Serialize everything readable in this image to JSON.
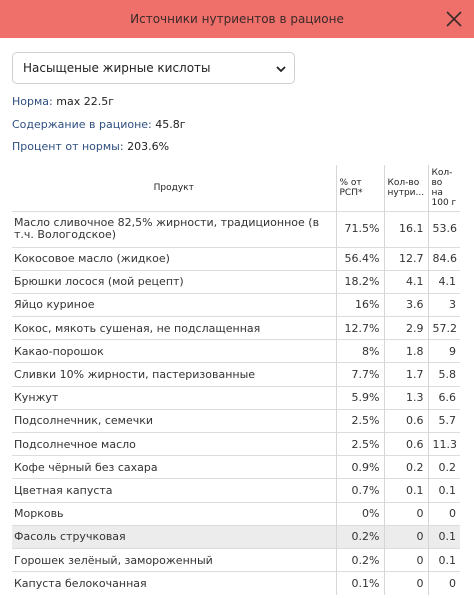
{
  "header": {
    "title": "Источники нутриентов в рационе"
  },
  "selector": {
    "value": "Насыщеные жирные кислоты"
  },
  "summary": {
    "norm_label": "Норма:",
    "norm_value": "max 22.5г",
    "content_label": "Содержание в рационе:",
    "content_value": "45.8г",
    "percent_label": "Процент от нормы:",
    "percent_value": "203.6%"
  },
  "table": {
    "headers": {
      "product": "Продукт",
      "pct_line1": "% от",
      "pct_line2": "РСП*",
      "qty_line1": "Кол-во",
      "qty_line2": "нутри...",
      "per100_line1": "Кол-",
      "per100_line2": "во",
      "per100_line3": "на",
      "per100_line4": "100 г"
    },
    "rows": [
      {
        "product": "Масло сливочное 82,5% жирности, традиционное (в т.ч. Вологодское)",
        "pct": "71.5%",
        "qty": "16.1",
        "per100": "53.6"
      },
      {
        "product": "Кокосовое масло (жидкое)",
        "pct": "56.4%",
        "qty": "12.7",
        "per100": "84.6"
      },
      {
        "product": "Брюшки лосося (мой рецепт)",
        "pct": "18.2%",
        "qty": "4.1",
        "per100": "4.1"
      },
      {
        "product": "Яйцо куриное",
        "pct": "16%",
        "qty": "3.6",
        "per100": "3"
      },
      {
        "product": "Кокос, мякоть сушеная, не подслащенная",
        "pct": "12.7%",
        "qty": "2.9",
        "per100": "57.2"
      },
      {
        "product": "Какао-порошок",
        "pct": "8%",
        "qty": "1.8",
        "per100": "9"
      },
      {
        "product": "Сливки 10% жирности, пастеризованные",
        "pct": "7.7%",
        "qty": "1.7",
        "per100": "5.8"
      },
      {
        "product": "Кунжут",
        "pct": "5.9%",
        "qty": "1.3",
        "per100": "6.6"
      },
      {
        "product": "Подсолнечник, семечки",
        "pct": "2.5%",
        "qty": "0.6",
        "per100": "5.7"
      },
      {
        "product": "Подсолнечное масло",
        "pct": "2.5%",
        "qty": "0.6",
        "per100": "11.3"
      },
      {
        "product": "Кофе чёрный без сахара",
        "pct": "0.9%",
        "qty": "0.2",
        "per100": "0.2"
      },
      {
        "product": "Цветная капуста",
        "pct": "0.7%",
        "qty": "0.1",
        "per100": "0.1"
      },
      {
        "product": "Морковь",
        "pct": "0%",
        "qty": "0",
        "per100": "0"
      },
      {
        "product": "Фасоль стручковая",
        "pct": "0.2%",
        "qty": "0",
        "per100": "0.1"
      },
      {
        "product": "Горошек зелёный, замороженный",
        "pct": "0.2%",
        "qty": "0",
        "per100": "0.1"
      },
      {
        "product": "Капуста белокочанная",
        "pct": "0.1%",
        "qty": "0",
        "per100": "0"
      }
    ]
  }
}
